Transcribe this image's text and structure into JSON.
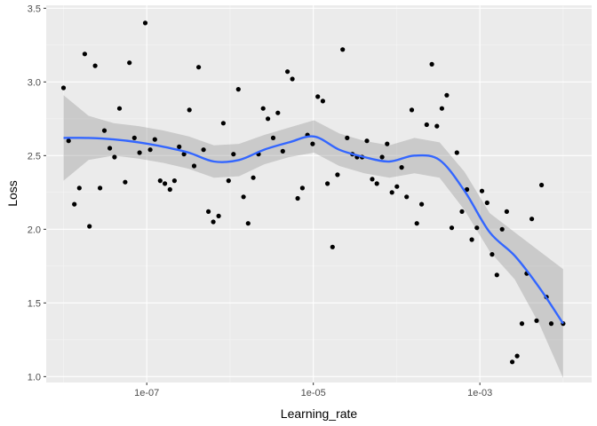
{
  "colors": {
    "panel_background": "#ebebeb",
    "grid_major": "#ffffff",
    "grid_minor": "#f5f5f5",
    "point": "#000000",
    "smooth_line": "#3366ff",
    "confidence_band": "#999999"
  },
  "chart_data": {
    "type": "scatter",
    "xlabel": "Learning_rate",
    "ylabel": "Loss",
    "x_scale": "log10",
    "xlim": [
      6.2e-09,
      0.022
    ],
    "ylim": [
      0.96,
      3.52
    ],
    "x_ticks": [
      {
        "value": 1e-07,
        "label": "1e-07"
      },
      {
        "value": 1e-05,
        "label": "1e-05"
      },
      {
        "value": 0.001,
        "label": "1e-03"
      }
    ],
    "y_ticks": [
      {
        "value": 1.0,
        "label": "1.0"
      },
      {
        "value": 1.5,
        "label": "1.5"
      },
      {
        "value": 2.0,
        "label": "2.0"
      },
      {
        "value": 2.5,
        "label": "2.5"
      },
      {
        "value": 3.0,
        "label": "3.0"
      },
      {
        "value": 3.5,
        "label": "3.5"
      }
    ],
    "grid": true,
    "legend": "none",
    "points": [
      {
        "x": 1e-08,
        "y": 2.96
      },
      {
        "x": 1.15e-08,
        "y": 2.6
      },
      {
        "x": 1.35e-08,
        "y": 2.17
      },
      {
        "x": 1.55e-08,
        "y": 2.28
      },
      {
        "x": 1.8e-08,
        "y": 3.19
      },
      {
        "x": 2.05e-08,
        "y": 2.02
      },
      {
        "x": 2.4e-08,
        "y": 3.11
      },
      {
        "x": 2.75e-08,
        "y": 2.28
      },
      {
        "x": 3.1e-08,
        "y": 2.67
      },
      {
        "x": 3.6e-08,
        "y": 2.55
      },
      {
        "x": 4.1e-08,
        "y": 2.49
      },
      {
        "x": 4.7e-08,
        "y": 2.82
      },
      {
        "x": 5.5e-08,
        "y": 2.32
      },
      {
        "x": 6.2e-08,
        "y": 3.13
      },
      {
        "x": 7.1e-08,
        "y": 2.62
      },
      {
        "x": 8.2e-08,
        "y": 2.52
      },
      {
        "x": 9.6e-08,
        "y": 3.4
      },
      {
        "x": 1.1e-07,
        "y": 2.54
      },
      {
        "x": 1.25e-07,
        "y": 2.61
      },
      {
        "x": 1.45e-07,
        "y": 2.33
      },
      {
        "x": 1.65e-07,
        "y": 2.31
      },
      {
        "x": 1.9e-07,
        "y": 2.27
      },
      {
        "x": 2.15e-07,
        "y": 2.33
      },
      {
        "x": 2.45e-07,
        "y": 2.56
      },
      {
        "x": 2.8e-07,
        "y": 2.51
      },
      {
        "x": 3.25e-07,
        "y": 2.81
      },
      {
        "x": 3.7e-07,
        "y": 2.43
      },
      {
        "x": 4.2e-07,
        "y": 3.1
      },
      {
        "x": 4.8e-07,
        "y": 2.54
      },
      {
        "x": 5.5e-07,
        "y": 2.12
      },
      {
        "x": 6.3e-07,
        "y": 2.05
      },
      {
        "x": 7.3e-07,
        "y": 2.09
      },
      {
        "x": 8.3e-07,
        "y": 2.72
      },
      {
        "x": 9.6e-07,
        "y": 2.33
      },
      {
        "x": 1.1e-06,
        "y": 2.51
      },
      {
        "x": 1.26e-06,
        "y": 2.95
      },
      {
        "x": 1.45e-06,
        "y": 2.22
      },
      {
        "x": 1.65e-06,
        "y": 2.04
      },
      {
        "x": 1.9e-06,
        "y": 2.35
      },
      {
        "x": 2.2e-06,
        "y": 2.51
      },
      {
        "x": 2.5e-06,
        "y": 2.82
      },
      {
        "x": 2.85e-06,
        "y": 2.75
      },
      {
        "x": 3.3e-06,
        "y": 2.62
      },
      {
        "x": 3.75e-06,
        "y": 2.79
      },
      {
        "x": 4.3e-06,
        "y": 2.53
      },
      {
        "x": 4.9e-06,
        "y": 3.07
      },
      {
        "x": 5.6e-06,
        "y": 3.02
      },
      {
        "x": 6.5e-06,
        "y": 2.21
      },
      {
        "x": 7.4e-06,
        "y": 2.28
      },
      {
        "x": 8.5e-06,
        "y": 2.64
      },
      {
        "x": 9.8e-06,
        "y": 2.58
      },
      {
        "x": 1.13e-05,
        "y": 2.9
      },
      {
        "x": 1.3e-05,
        "y": 2.87
      },
      {
        "x": 1.48e-05,
        "y": 2.31
      },
      {
        "x": 1.7e-05,
        "y": 1.88
      },
      {
        "x": 1.95e-05,
        "y": 2.37
      },
      {
        "x": 2.25e-05,
        "y": 3.22
      },
      {
        "x": 2.55e-05,
        "y": 2.62
      },
      {
        "x": 2.95e-05,
        "y": 2.51
      },
      {
        "x": 3.35e-05,
        "y": 2.49
      },
      {
        "x": 3.85e-05,
        "y": 2.49
      },
      {
        "x": 4.4e-05,
        "y": 2.6
      },
      {
        "x": 5.1e-05,
        "y": 2.34
      },
      {
        "x": 5.8e-05,
        "y": 2.31
      },
      {
        "x": 6.7e-05,
        "y": 2.49
      },
      {
        "x": 7.7e-05,
        "y": 2.58
      },
      {
        "x": 8.8e-05,
        "y": 2.25
      },
      {
        "x": 0.000101,
        "y": 2.29
      },
      {
        "x": 0.000115,
        "y": 2.42
      },
      {
        "x": 0.000132,
        "y": 2.22
      },
      {
        "x": 0.000152,
        "y": 2.81
      },
      {
        "x": 0.000175,
        "y": 2.04
      },
      {
        "x": 0.0002,
        "y": 2.17
      },
      {
        "x": 0.00023,
        "y": 2.71
      },
      {
        "x": 0.000265,
        "y": 3.12
      },
      {
        "x": 0.000305,
        "y": 2.7
      },
      {
        "x": 0.00035,
        "y": 2.82
      },
      {
        "x": 0.0004,
        "y": 2.91
      },
      {
        "x": 0.00046,
        "y": 2.01
      },
      {
        "x": 0.00053,
        "y": 2.52
      },
      {
        "x": 0.00061,
        "y": 2.12
      },
      {
        "x": 0.0007,
        "y": 2.27
      },
      {
        "x": 0.0008,
        "y": 1.93
      },
      {
        "x": 0.00092,
        "y": 2.01
      },
      {
        "x": 0.00106,
        "y": 2.26
      },
      {
        "x": 0.00122,
        "y": 2.18
      },
      {
        "x": 0.0014,
        "y": 1.83
      },
      {
        "x": 0.0016,
        "y": 1.69
      },
      {
        "x": 0.00185,
        "y": 2.0
      },
      {
        "x": 0.0021,
        "y": 2.12
      },
      {
        "x": 0.00245,
        "y": 1.1
      },
      {
        "x": 0.0028,
        "y": 1.14
      },
      {
        "x": 0.0032,
        "y": 1.36
      },
      {
        "x": 0.00365,
        "y": 1.7
      },
      {
        "x": 0.0042,
        "y": 2.07
      },
      {
        "x": 0.0048,
        "y": 1.38
      },
      {
        "x": 0.0055,
        "y": 2.3
      },
      {
        "x": 0.0063,
        "y": 1.54
      },
      {
        "x": 0.0072,
        "y": 1.36
      },
      {
        "x": 0.01,
        "y": 1.36
      }
    ],
    "smooth": {
      "method": "loess",
      "x": [
        1e-08,
        2e-08,
        4e-08,
        8e-08,
        1.6e-07,
        3.2e-07,
        6.4e-07,
        1.28e-06,
        2.56e-06,
        5.12e-06,
        1.02e-05,
        2.05e-05,
        4.1e-05,
        8.2e-05,
        0.000164,
        0.000328,
        0.000655,
        0.00131,
        0.00262,
        0.00524,
        0.01
      ],
      "y": [
        2.62,
        2.62,
        2.61,
        2.59,
        2.56,
        2.52,
        2.46,
        2.47,
        2.54,
        2.59,
        2.63,
        2.54,
        2.49,
        2.46,
        2.5,
        2.47,
        2.26,
        1.98,
        1.82,
        1.6,
        1.36
      ],
      "lower": [
        2.33,
        2.47,
        2.5,
        2.48,
        2.45,
        2.41,
        2.35,
        2.36,
        2.44,
        2.49,
        2.52,
        2.43,
        2.38,
        2.35,
        2.38,
        2.35,
        2.13,
        1.85,
        1.66,
        1.35,
        0.99
      ],
      "upper": [
        2.91,
        2.77,
        2.72,
        2.7,
        2.67,
        2.63,
        2.57,
        2.58,
        2.64,
        2.69,
        2.74,
        2.65,
        2.6,
        2.57,
        2.62,
        2.59,
        2.39,
        2.11,
        1.98,
        1.85,
        1.73
      ]
    }
  }
}
